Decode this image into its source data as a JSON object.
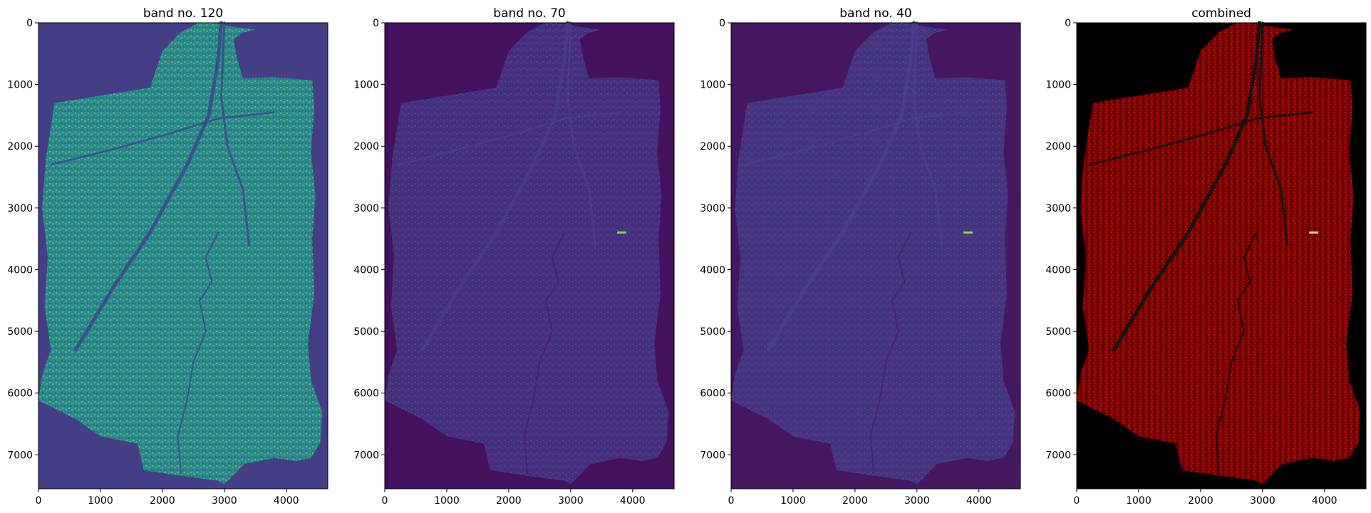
{
  "figure": {
    "panels": [
      {
        "title": "band no. 120",
        "colormap": "viridis",
        "image_bg": "#433e85",
        "render": "band120"
      },
      {
        "title": "band no. 70",
        "colormap": "viridis",
        "image_bg": "#44115f",
        "render": "band70"
      },
      {
        "title": "band no. 40",
        "colormap": "viridis",
        "image_bg": "#451661",
        "render": "band40"
      },
      {
        "title": "combined",
        "colormap": "rgb-false-color",
        "image_bg": "#000000",
        "render": "combined"
      }
    ],
    "x_ticks": [
      "0",
      "1000",
      "2000",
      "3000",
      "4000"
    ],
    "y_ticks": [
      "0",
      "1000",
      "2000",
      "3000",
      "4000",
      "5000",
      "6000",
      "7000"
    ],
    "x_tick_values": [
      0,
      1000,
      2000,
      3000,
      4000
    ],
    "y_tick_values": [
      0,
      1000,
      2000,
      3000,
      4000,
      5000,
      6000,
      7000
    ],
    "x_range": [
      0,
      4670
    ],
    "y_range": [
      7550,
      0
    ]
  }
}
